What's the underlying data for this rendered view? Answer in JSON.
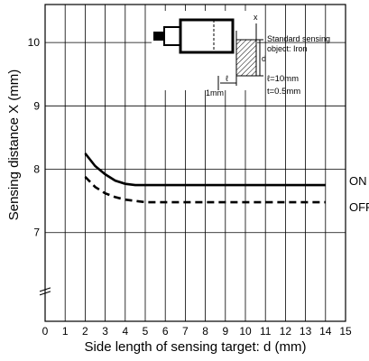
{
  "chart_data": {
    "type": "line",
    "title": "",
    "xlabel": "Side length of sensing target: d (mm)",
    "ylabel": "Sensing distance X (mm)",
    "xlim": [
      0,
      15
    ],
    "ylim": [
      5.6,
      10.6
    ],
    "x_ticks": [
      "0",
      "1",
      "2",
      "3",
      "4",
      "5",
      "6",
      "7",
      "8",
      "9",
      "10",
      "11",
      "12",
      "13",
      "14",
      "15"
    ],
    "y_ticks": [
      "7",
      "8",
      "9",
      "10"
    ],
    "y_axis_break": true,
    "grid": true,
    "series": [
      {
        "name": "ON",
        "style": "solid",
        "points": [
          [
            2,
            8.25
          ],
          [
            2.5,
            8.05
          ],
          [
            3,
            7.92
          ],
          [
            3.5,
            7.82
          ],
          [
            4,
            7.77
          ],
          [
            4.5,
            7.75
          ],
          [
            5,
            7.75
          ],
          [
            14,
            7.75
          ]
        ]
      },
      {
        "name": "OFF",
        "style": "dashed",
        "points": [
          [
            2,
            7.88
          ],
          [
            2.5,
            7.72
          ],
          [
            3,
            7.62
          ],
          [
            3.5,
            7.56
          ],
          [
            4,
            7.52
          ],
          [
            4.5,
            7.5
          ],
          [
            5,
            7.48
          ],
          [
            14,
            7.48
          ]
        ]
      }
    ],
    "inset": {
      "label_x": "x",
      "label_d": "d",
      "label_l": "ℓ",
      "label_1mm": "1mm",
      "object_line1": "Standard sensing",
      "object_line2": "object: Iron",
      "spec_l": "ℓ=10mm",
      "spec_t": "t=0.5mm"
    }
  }
}
